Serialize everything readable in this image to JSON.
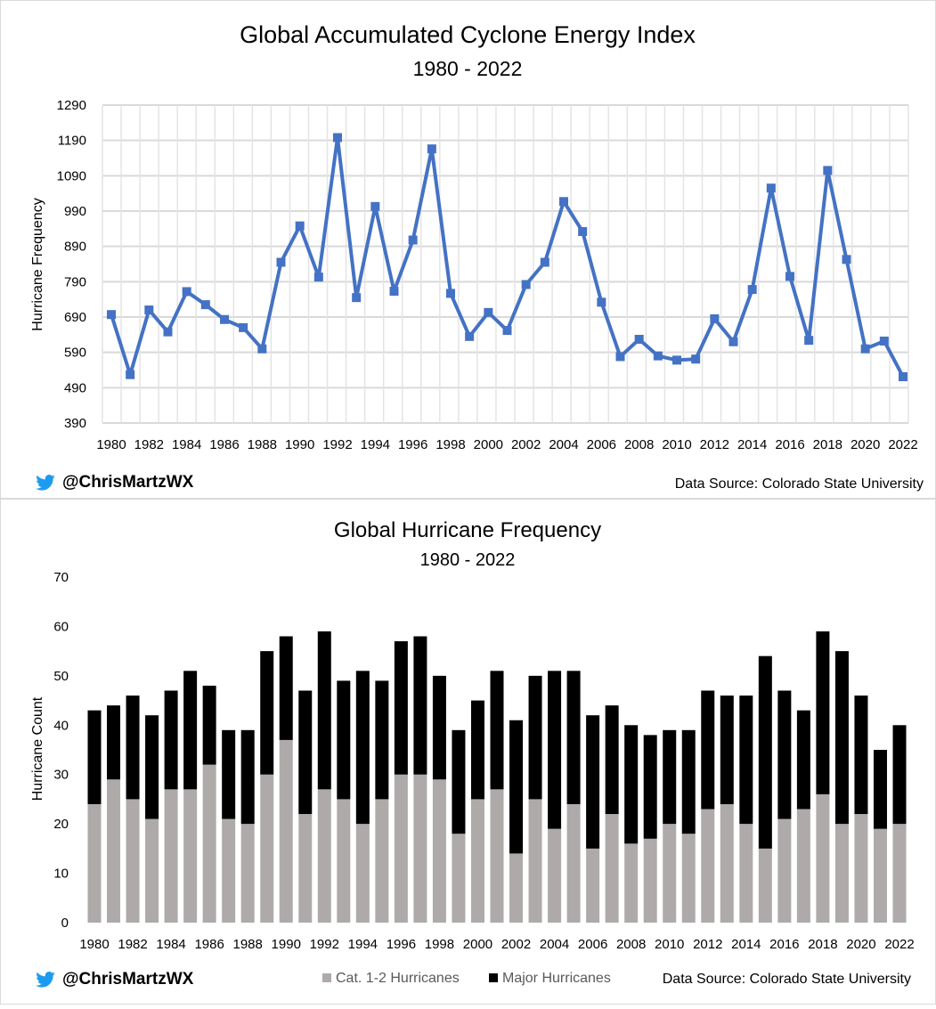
{
  "footer": {
    "handle": "@ChrisMartzWX",
    "source": "Data Source: Colorado State University",
    "twitter_icon_color": "#1d9bf0"
  },
  "chart_data": [
    {
      "type": "line",
      "title": "Global Accumulated Cyclone Energy Index",
      "subtitle": "1980 - 2022",
      "xlabel": "",
      "ylabel": "Hurricane Frequency",
      "ylim": [
        390,
        1290
      ],
      "yticks": [
        390,
        490,
        590,
        690,
        790,
        890,
        990,
        1090,
        1190,
        1290
      ],
      "xtick_labels": [
        "1980",
        "1982",
        "1984",
        "1986",
        "1988",
        "1990",
        "1992",
        "1994",
        "1996",
        "1998",
        "2000",
        "2002",
        "2004",
        "2006",
        "2008",
        "2010",
        "2012",
        "2014",
        "2016",
        "2018",
        "2020",
        "2022"
      ],
      "grid": true,
      "color": "#4472c4",
      "x": [
        1980,
        1981,
        1982,
        1983,
        1984,
        1985,
        1986,
        1987,
        1988,
        1989,
        1990,
        1991,
        1992,
        1993,
        1994,
        1995,
        1996,
        1997,
        1998,
        1999,
        2000,
        2001,
        2002,
        2003,
        2004,
        2005,
        2006,
        2007,
        2008,
        2009,
        2010,
        2011,
        2012,
        2013,
        2014,
        2015,
        2016,
        2017,
        2018,
        2019,
        2020,
        2021,
        2022
      ],
      "values": [
        697,
        527,
        710,
        648,
        762,
        725,
        683,
        660,
        600,
        845,
        948,
        803,
        1198,
        745,
        1003,
        763,
        908,
        1166,
        757,
        635,
        703,
        652,
        782,
        845,
        1017,
        932,
        732,
        578,
        627,
        580,
        568,
        571,
        685,
        620,
        768,
        1055,
        805,
        624,
        1105,
        853,
        600,
        622,
        521
      ]
    },
    {
      "type": "bar",
      "stacked": true,
      "title": "Global Hurricane Frequency",
      "subtitle": "1980 - 2022",
      "xlabel": "",
      "ylabel": "Hurricane Count",
      "ylim": [
        0,
        70
      ],
      "yticks": [
        0,
        10,
        20,
        30,
        40,
        50,
        60,
        70
      ],
      "xtick_labels": [
        "1980",
        "1982",
        "1984",
        "1986",
        "1988",
        "1990",
        "1992",
        "1994",
        "1996",
        "1998",
        "2000",
        "2002",
        "2004",
        "2006",
        "2008",
        "2010",
        "2012",
        "2014",
        "2016",
        "2018",
        "2020",
        "2022"
      ],
      "legend_position": "bottom",
      "categories": [
        1980,
        1981,
        1982,
        1983,
        1984,
        1985,
        1986,
        1987,
        1988,
        1989,
        1990,
        1991,
        1992,
        1993,
        1994,
        1995,
        1996,
        1997,
        1998,
        1999,
        2000,
        2001,
        2002,
        2003,
        2004,
        2005,
        2006,
        2007,
        2008,
        2009,
        2010,
        2011,
        2012,
        2013,
        2014,
        2015,
        2016,
        2017,
        2018,
        2019,
        2020,
        2021,
        2022
      ],
      "series": [
        {
          "name": "Cat. 1-2 Hurricanes",
          "color": "#aeaaaa",
          "values": [
            24,
            29,
            25,
            21,
            27,
            27,
            32,
            21,
            20,
            30,
            37,
            22,
            27,
            25,
            20,
            25,
            30,
            30,
            29,
            18,
            25,
            27,
            14,
            25,
            19,
            24,
            15,
            22,
            16,
            17,
            20,
            18,
            23,
            24,
            20,
            15,
            21,
            23,
            26,
            20,
            22,
            19,
            20
          ]
        },
        {
          "name": "Major Hurricanes",
          "color": "#000000",
          "values": [
            19,
            15,
            21,
            21,
            20,
            24,
            16,
            18,
            19,
            25,
            21,
            25,
            32,
            24,
            31,
            24,
            27,
            28,
            21,
            21,
            20,
            24,
            27,
            25,
            32,
            27,
            27,
            22,
            24,
            21,
            19,
            21,
            24,
            22,
            26,
            39,
            26,
            20,
            33,
            35,
            24,
            16,
            20
          ]
        }
      ]
    }
  ]
}
